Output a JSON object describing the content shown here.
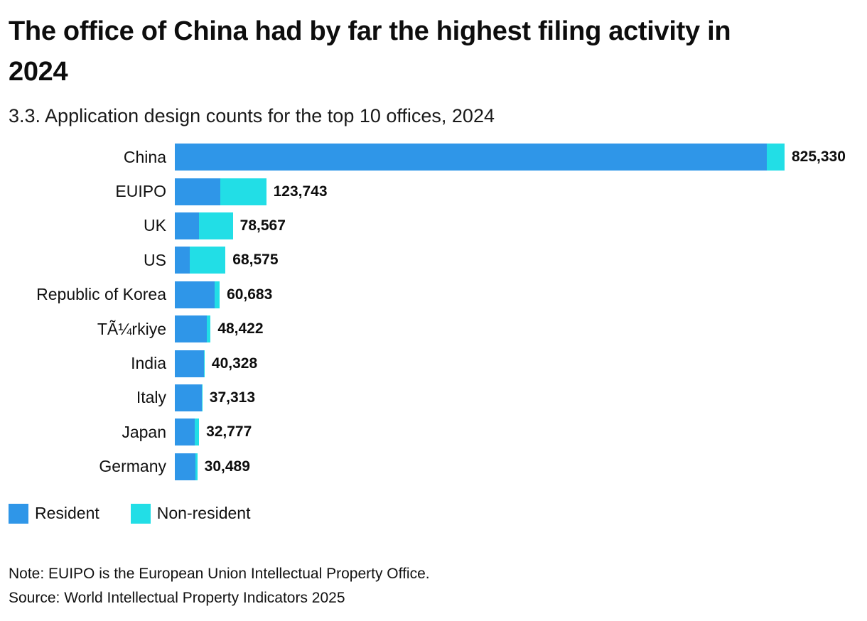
{
  "header": {
    "title": "The office of China had by far the highest filing activity in 2024",
    "subtitle": "3.3. Application design counts for the top 10 offices, 2024"
  },
  "chart_data": {
    "type": "bar",
    "orientation": "horizontal",
    "stacked": true,
    "grid": false,
    "legend_position": "bottom",
    "categories": [
      "China",
      "EUIPO",
      "UK",
      "US",
      "Republic of Korea",
      "TÃ¼rkiye",
      "India",
      "Italy",
      "Japan",
      "Germany"
    ],
    "totals": [
      825330,
      123743,
      78567,
      68575,
      60683,
      48422,
      40328,
      37313,
      32777,
      30489
    ],
    "total_labels": [
      "825,330",
      "123,743",
      "78,567",
      "68,575",
      "60,683",
      "48,422",
      "40,328",
      "37,313",
      "32,777",
      "30,489"
    ],
    "series": [
      {
        "name": "Resident",
        "color": "#2f96e8",
        "values": [
          801000,
          61743,
          32567,
          20575,
          54000,
          43000,
          39000,
          36313,
          27000,
          28000
        ]
      },
      {
        "name": "Non-resident",
        "color": "#22dee6",
        "values": [
          24330,
          62000,
          46000,
          48000,
          6683,
          5422,
          1328,
          1000,
          5777,
          2489
        ]
      }
    ],
    "xmax": 825330,
    "xlabel": "",
    "ylabel": ""
  },
  "legend": {
    "items": [
      {
        "label": "Resident",
        "color": "#2f96e8"
      },
      {
        "label": "Non-resident",
        "color": "#22dee6"
      }
    ]
  },
  "footer": {
    "note": "Note: EUIPO is the European Union Intellectual Property Office.",
    "source": "Source: World Intellectual Property Indicators 2025"
  }
}
